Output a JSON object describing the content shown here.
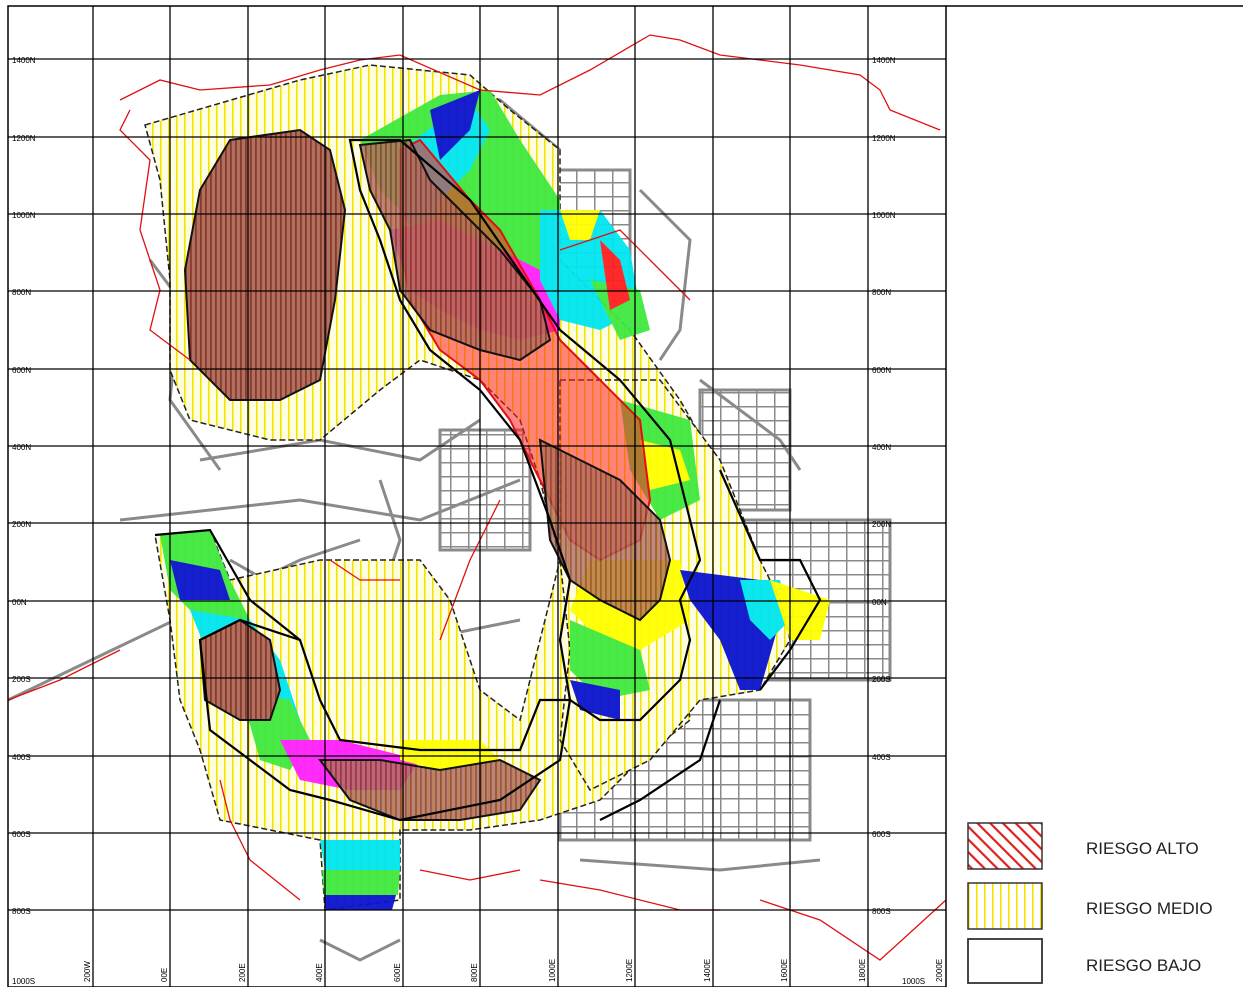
{
  "grid": {
    "northing_labels": [
      "1400N",
      "1200N",
      "1000N",
      "800N",
      "600N",
      "400N",
      "200N",
      "00N",
      "200S",
      "400S",
      "600S",
      "800S",
      "1000S"
    ],
    "easting_labels": [
      "200W",
      "00E",
      "200E",
      "400E",
      "600E",
      "800E",
      "1000E",
      "1200E",
      "1400E",
      "1600E",
      "1800E",
      "2000E"
    ]
  },
  "legend": {
    "items": [
      {
        "label": "RIESGO ALTO",
        "pattern": "red-diagonal-hatch",
        "color": "#e02020"
      },
      {
        "label": "RIESGO MEDIO",
        "pattern": "yellow-vertical-stripes",
        "color": "#f2e400"
      },
      {
        "label": "RIESGO BAJO",
        "pattern": "empty",
        "color": "#333333"
      }
    ]
  },
  "colors": {
    "grid": "#000000",
    "workings": "#8a8a8a",
    "boundary": "#e01010",
    "high_risk": "#9a4a3a",
    "medium_risk": "#f2e400",
    "bands": [
      "#0a14d0",
      "#00e6f0",
      "#40e840",
      "#ff20ff",
      "#ffff00",
      "#ff2020"
    ]
  }
}
